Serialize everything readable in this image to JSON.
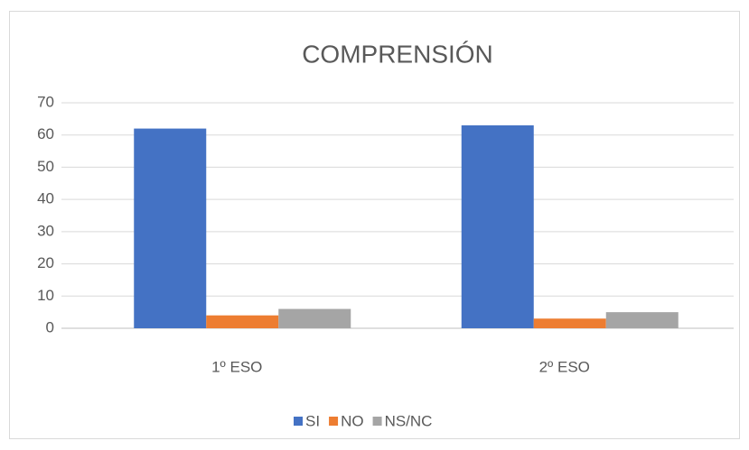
{
  "chart_data": {
    "type": "bar",
    "title": "COMPRENSIÓN",
    "categories": [
      "1º ESO",
      "2º ESO"
    ],
    "series": [
      {
        "name": "SI",
        "color": "#4472c4",
        "values": [
          62,
          63
        ]
      },
      {
        "name": "NO",
        "color": "#ed7d31",
        "values": [
          4,
          3
        ]
      },
      {
        "name": "NS/NC",
        "color": "#a5a5a5",
        "values": [
          6,
          5
        ]
      }
    ],
    "ylim": [
      0,
      70
    ],
    "yticks": [
      0,
      10,
      20,
      30,
      40,
      50,
      60,
      70
    ],
    "grid": true,
    "legend": "bottom"
  }
}
